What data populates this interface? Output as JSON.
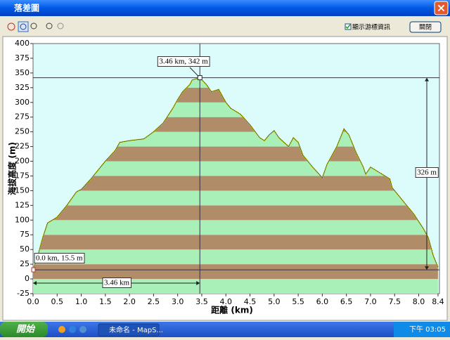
{
  "window": {
    "title": "落差圖",
    "close": "×"
  },
  "toolbar": {
    "checkbox_label": "顯示游標資訊",
    "close_button": "關閉"
  },
  "chart_data": {
    "type": "line",
    "y_label": "海拔高度 (m)",
    "x_label": "距離 (km)",
    "x": [
      0.0,
      0.1,
      0.2,
      0.3,
      0.5,
      0.7,
      0.9,
      1.0,
      1.2,
      1.3,
      1.5,
      1.7,
      1.8,
      2.0,
      2.3,
      2.5,
      2.7,
      2.9,
      3.0,
      3.1,
      3.25,
      3.3,
      3.46,
      3.6,
      3.7,
      3.85,
      4.0,
      4.1,
      4.3,
      4.5,
      4.7,
      4.8,
      4.9,
      5.0,
      5.1,
      5.3,
      5.4,
      5.5,
      5.6,
      5.8,
      6.0,
      6.1,
      6.3,
      6.45,
      6.55,
      6.7,
      6.85,
      6.9,
      7.0,
      7.2,
      7.4,
      7.45,
      7.7,
      7.9,
      8.1,
      8.2,
      8.3,
      8.4
    ],
    "series": [
      {
        "color": "#d8d800",
        "values": [
          15.5,
          40,
          70,
          95,
          105,
          125,
          148,
          152,
          170,
          180,
          200,
          218,
          232,
          235,
          238,
          250,
          265,
          290,
          305,
          318,
          330,
          338,
          342,
          330,
          318,
          322,
          300,
          290,
          280,
          262,
          240,
          235,
          245,
          252,
          240,
          225,
          240,
          232,
          210,
          190,
          172,
          195,
          225,
          255,
          245,
          215,
          190,
          178,
          190,
          180,
          170,
          155,
          130,
          110,
          85,
          70,
          40,
          20
        ]
      }
    ],
    "xlim": [
      0,
      8.43
    ],
    "ylim": [
      -25,
      400
    ],
    "xticks": [
      {
        "value": 0,
        "label": "0.0"
      },
      0.5,
      {
        "value": 1,
        "label": "1.0"
      },
      1.5,
      {
        "value": 2,
        "label": "2.0"
      },
      2.5,
      {
        "value": 3,
        "label": "3.0"
      },
      3.5,
      {
        "value": 4,
        "label": "4.0"
      },
      4.5,
      {
        "value": 5,
        "label": "5.0"
      },
      5.5,
      {
        "value": 6,
        "label": "6.0"
      },
      6.5,
      {
        "value": 7,
        "label": "7.0"
      },
      7.5,
      {
        "value": 8,
        "label": "8.0"
      },
      8.4
    ],
    "yticks": [
      -25,
      0,
      25,
      50,
      75,
      100,
      125,
      150,
      175,
      200,
      225,
      250,
      275,
      300,
      325,
      350,
      375,
      400
    ],
    "annotations": {
      "peak": "3.46 km, 342 m",
      "start": "0.0 km, 15.5 m",
      "distance": "3.46 km",
      "drop": "326 m"
    }
  },
  "taskbar": {
    "start": "開始",
    "task": "未命名 - MapS...",
    "clock": "下午 03:05"
  }
}
